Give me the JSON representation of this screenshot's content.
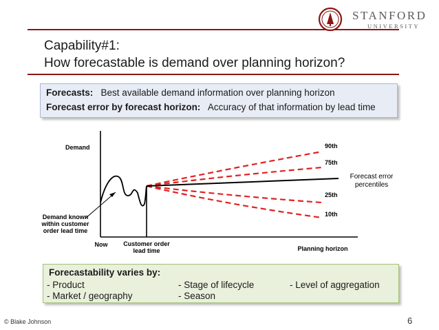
{
  "header": {
    "logo": {
      "name": "STANFORD",
      "sub": "UNIVERSITY",
      "icon": "stanford-seal-icon"
    },
    "title_line1": "Capability#1:",
    "title_line2": "How forecastable is demand over planning horizon?"
  },
  "definitions": {
    "row1_label": "Forecasts:",
    "row1_text": "Best available demand information over planning horizon",
    "row2_label": "Forecast error by forecast horizon:",
    "row2_text": "Accuracy of that information by lead time"
  },
  "diagram": {
    "y_axis_label": "Demand",
    "x_axis_label": "Planning horizon",
    "now_label": "Now",
    "customer_order_line1": "Customer order",
    "customer_order_line2": "lead time",
    "known_line1": "Demand known",
    "known_line2": "within customer",
    "known_line3": "order lead time",
    "percentile_labels": [
      "90th",
      "75th",
      "25th",
      "10th"
    ],
    "error_label_line1": "Forecast error",
    "error_label_line2": "percentiles",
    "colors": {
      "forecast": "#000000",
      "percentile": "#e02020"
    }
  },
  "varies": {
    "heading": "Forecastability varies by:",
    "items": [
      "- Product",
      "- Stage of lifecycle",
      "- Level of aggregation",
      "- Market / geography",
      "- Season"
    ]
  },
  "footer": {
    "copyright": "© Blake Johnson",
    "page": "6"
  }
}
